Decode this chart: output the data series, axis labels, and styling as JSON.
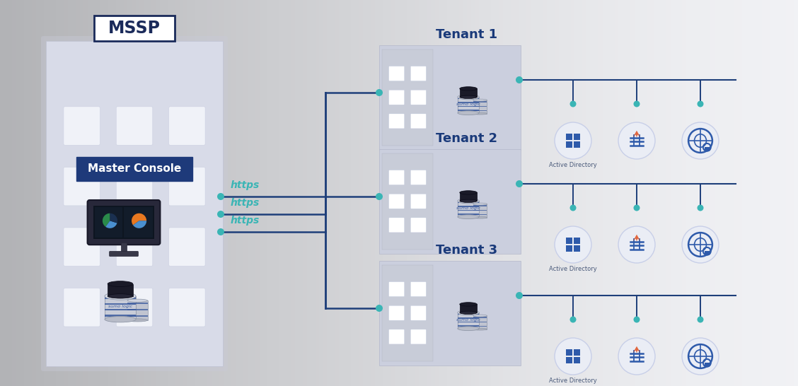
{
  "bg_color": "#edeef2",
  "mssp_label": "MSSP",
  "master_console_label": "Master Console",
  "tenants": [
    "Tenant 1",
    "Tenant 2",
    "Tenant 3"
  ],
  "https_labels": [
    "https",
    "https",
    "https"
  ],
  "icon_labels": [
    "Active Directory",
    "",
    ""
  ],
  "line_color": "#1e3f7a",
  "teal_color": "#3ab5b5",
  "building_color": "#d8dbe8",
  "building_color_light": "#e2e5f0",
  "window_color": "#ffffff",
  "window_color_blue": "#c5d0e8",
  "tenant_bg": "#cdd1e0",
  "master_console_bg": "#1e3a7a",
  "mssp_text_color": "#1a2a5a",
  "tenant_text_color": "#1a3a7a",
  "https_text_color": "#3ab5b5",
  "icon_circle_bg": "#eaedf5",
  "icon_circle_edge": "#c8cfe8",
  "icon_color": "#2e5aaa"
}
